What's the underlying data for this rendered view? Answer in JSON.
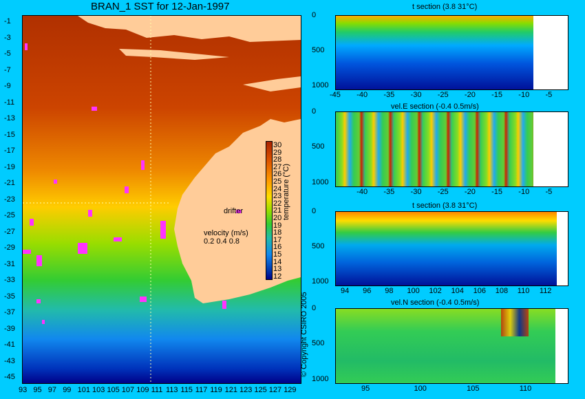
{
  "map": {
    "title": "BRAN_1 SST for 12-Jan-1997",
    "lat_ticks": [
      "-1",
      "-3",
      "-5",
      "-7",
      "-9",
      "-11",
      "-13",
      "-15",
      "-17",
      "-19",
      "-21",
      "-23",
      "-25",
      "-27",
      "-29",
      "-31",
      "-33",
      "-35",
      "-37",
      "-39",
      "-41",
      "-43",
      "-45"
    ],
    "lon_ticks": [
      "93",
      "95",
      "97",
      "99",
      "101",
      "103",
      "105",
      "107",
      "109",
      "111",
      "113",
      "115",
      "117",
      "119",
      "121",
      "123",
      "125",
      "127",
      "129"
    ],
    "legend_drifter": "drifter",
    "velocity_label": "velocity (m/s)",
    "velocity_scale": "0.2 0.4 0.8",
    "colorbar_ticks": [
      "30",
      "29",
      "28",
      "27",
      "26",
      "25",
      "24",
      "23",
      "22",
      "21",
      "20",
      "19",
      "18",
      "17",
      "16",
      "15",
      "14",
      "13",
      "12"
    ],
    "colorbar_label": "temperature (°C)",
    "colors": {
      "land": "#ffcc99",
      "drifter": "#ff33ff",
      "background": "#00ccff"
    }
  },
  "copyright": "© Copyright CSIRO 2005",
  "panels": [
    {
      "title": "t section (3.8      31°C)",
      "y_ticks": [
        "0",
        "500",
        "1000"
      ],
      "x_ticks": [
        "-45",
        "-40",
        "-35",
        "-30",
        "-25",
        "-20",
        "-15",
        "-10",
        "-5"
      ]
    },
    {
      "title": "vel.E section (-0.4      0.5m/s)",
      "y_ticks": [
        "0",
        "500",
        "1000"
      ],
      "x_ticks": [
        "-40",
        "-35",
        "-30",
        "-25",
        "-20",
        "-15",
        "-10",
        "-5"
      ]
    },
    {
      "title": "t section (3.8      31°C)",
      "y_ticks": [
        "0",
        "500",
        "1000"
      ],
      "x_ticks": [
        "94",
        "96",
        "98",
        "100",
        "102",
        "104",
        "106",
        "108",
        "110",
        "112"
      ]
    },
    {
      "title": "vel.N section (-0.4      0.5m/s)",
      "y_ticks": [
        "0",
        "500",
        "1000"
      ],
      "x_ticks": [
        "95",
        "100",
        "105",
        "110"
      ]
    }
  ],
  "chart_data": [
    {
      "type": "heatmap",
      "title": "BRAN_1 SST for 12-Jan-1997",
      "xlabel": "",
      "ylabel": "",
      "xlim": [
        93,
        130
      ],
      "ylim": [
        -45,
        0
      ],
      "colorbar": {
        "label": "temperature (°C)",
        "range": [
          12,
          30
        ]
      }
    },
    {
      "type": "heatmap",
      "title": "t section (3.8      31°C)",
      "xlim": [
        -45,
        -2
      ],
      "ylim": [
        1050,
        0
      ]
    },
    {
      "type": "heatmap",
      "title": "vel.E section (-0.4      0.5m/s)",
      "xlim": [
        -45,
        -2
      ],
      "ylim": [
        1050,
        0
      ]
    },
    {
      "type": "heatmap",
      "title": "t section (3.8      31°C)",
      "xlim": [
        93,
        114
      ],
      "ylim": [
        1050,
        0
      ]
    },
    {
      "type": "heatmap",
      "title": "vel.N section (-0.4      0.5m/s)",
      "xlim": [
        92,
        114
      ],
      "ylim": [
        1050,
        0
      ]
    }
  ]
}
